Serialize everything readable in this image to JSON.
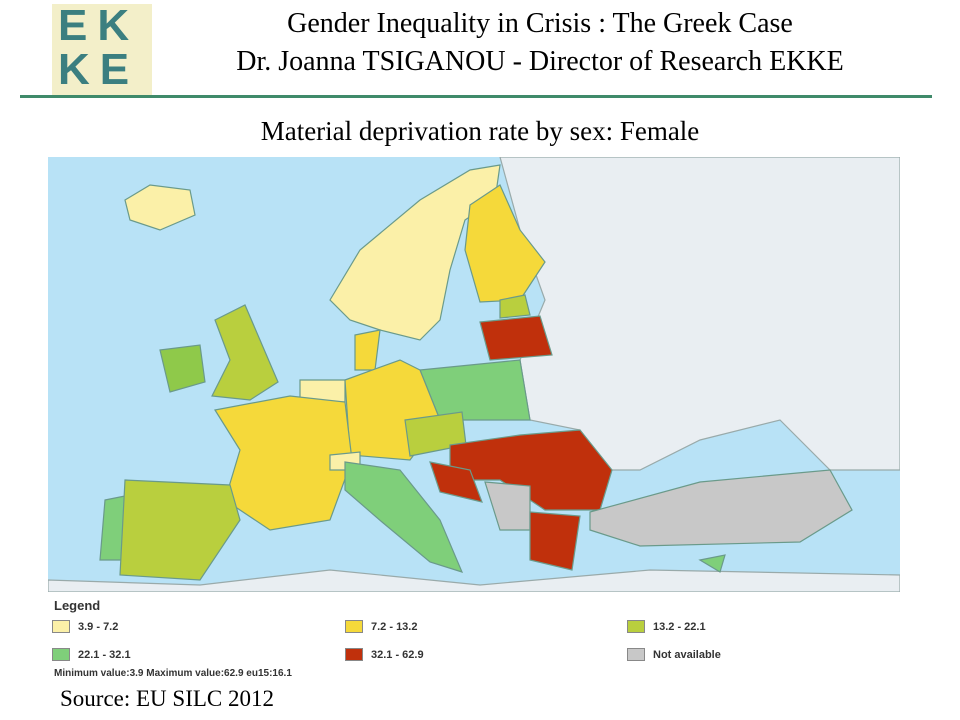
{
  "logo": {
    "line1": "EK",
    "line2": "KE"
  },
  "header": {
    "title": "Gender Inequality in Crisis : The Greek Case",
    "subtitle": "Dr. Joanna TSIGANOU - Director of Research EKKE"
  },
  "map": {
    "title": "Material deprivation rate by sex: Female",
    "legend": {
      "title": "Legend",
      "items": [
        {
          "label": "3.9 - 7.2",
          "color": "#fbf0a8"
        },
        {
          "label": "7.2 - 13.2",
          "color": "#f5d93a"
        },
        {
          "label": "13.2 - 22.1",
          "color": "#b9cf3e"
        },
        {
          "label": "22.1 - 32.1",
          "color": "#7fcf7a"
        },
        {
          "label": "32.1 - 62.9",
          "color": "#c0300c"
        },
        {
          "label": "Not available",
          "color": "#c8c8c8"
        }
      ],
      "note": "Minimum value:3.9 Maximum value:62.9 eu15:16.1"
    }
  },
  "source": "Source: EU SILC 2012"
}
